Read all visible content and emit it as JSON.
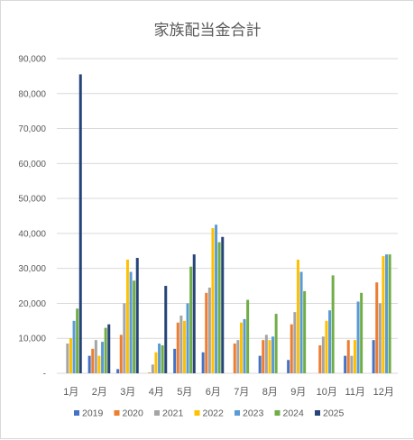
{
  "chart_data": {
    "type": "bar",
    "title": "家族配当金合計",
    "xlabel": "",
    "ylabel": "",
    "ylim": [
      0,
      90000
    ],
    "yticks": [
      "-",
      "10,000",
      "20,000",
      "30,000",
      "40,000",
      "50,000",
      "60,000",
      "70,000",
      "80,000",
      "90,000"
    ],
    "grid": true,
    "legend_position": "bottom",
    "categories": [
      "1月",
      "2月",
      "3月",
      "4月",
      "5月",
      "6月",
      "7月",
      "8月",
      "9月",
      "10月",
      "11月",
      "12月"
    ],
    "series": [
      {
        "name": "2019",
        "color": "#4472C4",
        "values": [
          0,
          5000,
          1200,
          0,
          7000,
          6000,
          0,
          5000,
          3800,
          0,
          5000,
          9500
        ]
      },
      {
        "name": "2020",
        "color": "#ED7D31",
        "values": [
          0,
          7000,
          11000,
          200,
          14500,
          23000,
          8500,
          9500,
          14000,
          8000,
          9500,
          26000
        ]
      },
      {
        "name": "2021",
        "color": "#A5A5A5",
        "values": [
          8500,
          9500,
          20000,
          2500,
          16500,
          24500,
          9500,
          11000,
          17500,
          10500,
          5000,
          20000
        ]
      },
      {
        "name": "2022",
        "color": "#FFC000",
        "values": [
          10000,
          5000,
          32500,
          6000,
          15000,
          41500,
          14500,
          9500,
          32500,
          15000,
          9500,
          33500
        ]
      },
      {
        "name": "2023",
        "color": "#5B9BD5",
        "values": [
          15000,
          9000,
          29000,
          8500,
          20000,
          42500,
          15500,
          10500,
          29000,
          18000,
          20500,
          34000
        ]
      },
      {
        "name": "2024",
        "color": "#70AD47",
        "values": [
          18500,
          13000,
          26500,
          8000,
          30500,
          37500,
          21000,
          17000,
          23500,
          28000,
          23000,
          34000
        ]
      },
      {
        "name": "2025",
        "color": "#264478",
        "values": [
          85500,
          14000,
          33000,
          25000,
          34000,
          39000,
          0,
          0,
          0,
          0,
          0,
          0
        ]
      }
    ]
  }
}
